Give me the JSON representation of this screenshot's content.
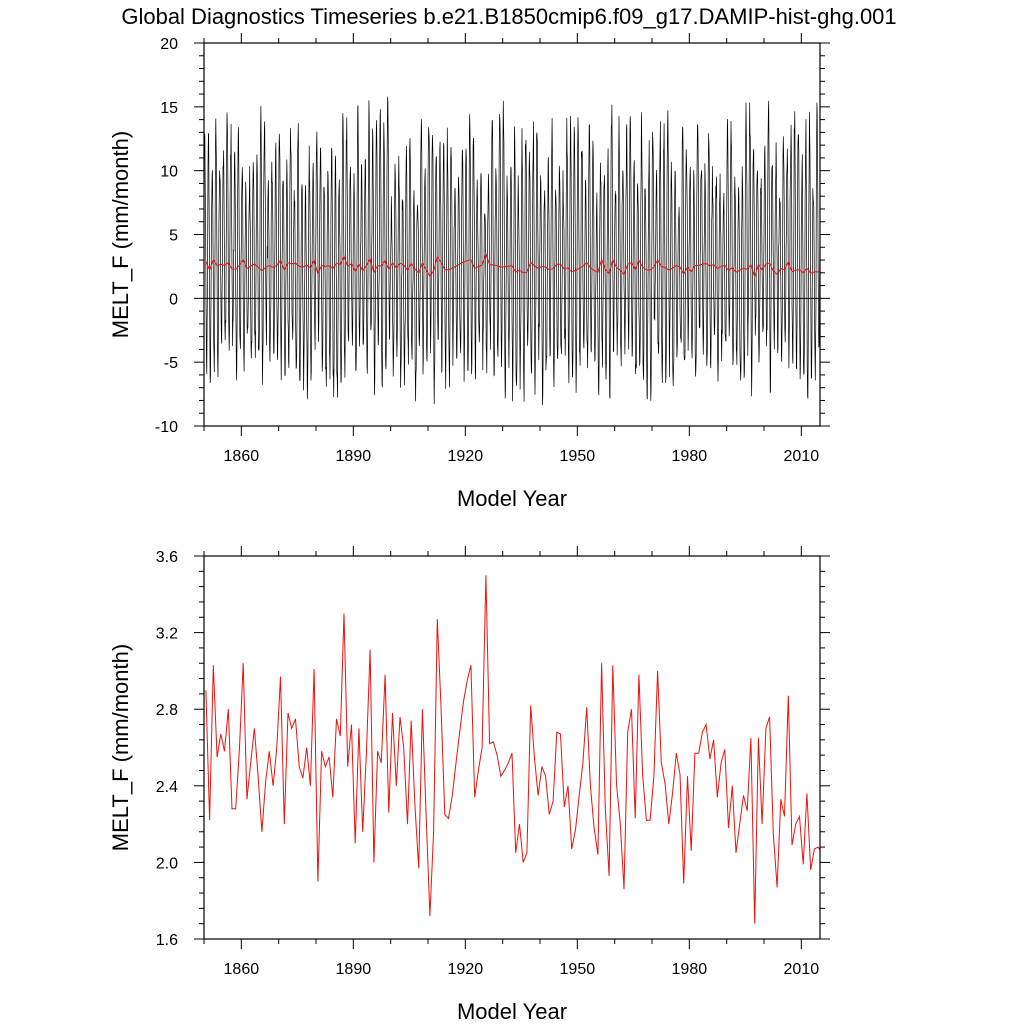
{
  "title": "Global Diagnostics Timeseries b.e21.B1850cmip6.f09_g17.DAMIP-hist-ghg.001",
  "colors": {
    "monthly": "#000000",
    "annual": "#e8140e",
    "background": "#ffffff"
  },
  "chart_data": [
    {
      "type": "line",
      "xlabel": "Model Year",
      "ylabel": "MELT_F (mm/month)",
      "xlim": [
        1850,
        2015
      ],
      "ylim": [
        -10,
        20
      ],
      "xticks": [
        1860,
        1890,
        1920,
        1950,
        1980,
        2010
      ],
      "yticks": [
        -10,
        -5,
        0,
        5,
        10,
        15,
        20
      ],
      "ytick_labels": [
        "-10",
        "-5",
        "0",
        "5",
        "10",
        "15",
        "20"
      ],
      "zero_line": 0,
      "grid": false,
      "series": [
        {
          "resolution": "monthly",
          "mean_annual_cycle_center": 2.5,
          "typical_peak": 11.5,
          "typical_trough": -5.0,
          "max_peak": 18.0,
          "min_trough": -8.5
        },
        {
          "resolution": "annual",
          "values_ref": "annual_mean"
        }
      ]
    },
    {
      "type": "line",
      "xlabel": "Model Year",
      "ylabel": "MELT_F (mm/month)",
      "xlim": [
        1850,
        2015
      ],
      "ylim": [
        1.6,
        3.6
      ],
      "xticks": [
        1860,
        1890,
        1920,
        1950,
        1980,
        2010
      ],
      "yticks": [
        1.6,
        2.0,
        2.4,
        2.8,
        3.2,
        3.6
      ],
      "ytick_labels": [
        "1.6",
        "2.0",
        "2.4",
        "2.8",
        "3.2",
        "3.6"
      ],
      "grid": false,
      "series": [
        {
          "resolution": "annual",
          "values_ref": "annual_mean"
        }
      ]
    }
  ],
  "annual_mean": {
    "x_start": 1850,
    "x_step": 1,
    "values": [
      2.9,
      2.22,
      3.03,
      2.55,
      2.67,
      2.58,
      2.8,
      2.28,
      2.28,
      2.6,
      3.04,
      2.33,
      2.52,
      2.7,
      2.45,
      2.16,
      2.42,
      2.58,
      2.4,
      2.6,
      2.97,
      2.2,
      2.78,
      2.7,
      2.75,
      2.5,
      2.44,
      2.6,
      2.4,
      3.01,
      1.9,
      2.58,
      2.5,
      2.55,
      2.34,
      2.75,
      2.66,
      3.3,
      2.5,
      2.72,
      2.1,
      2.7,
      2.16,
      2.57,
      3.11,
      2.0,
      2.58,
      2.52,
      2.98,
      2.26,
      2.78,
      2.4,
      2.76,
      2.6,
      2.2,
      2.74,
      2.3,
      1.97,
      2.8,
      2.25,
      1.72,
      2.16,
      3.27,
      2.8,
      2.25,
      2.23,
      2.35,
      2.52,
      2.68,
      2.84,
      2.95,
      3.03,
      2.34,
      2.48,
      2.6,
      3.5,
      2.62,
      2.63,
      2.56,
      2.45,
      2.48,
      2.52,
      2.57,
      2.05,
      2.2,
      2.0,
      2.05,
      2.82,
      2.55,
      2.35,
      2.5,
      2.45,
      2.25,
      2.32,
      2.68,
      2.67,
      2.29,
      2.4,
      2.07,
      2.17,
      2.35,
      2.52,
      2.81,
      2.4,
      2.18,
      2.04,
      3.04,
      2.28,
      1.93,
      3.03,
      2.41,
      2.2,
      1.86,
      2.68,
      2.8,
      2.23,
      2.98,
      2.45,
      2.22,
      2.22,
      2.45,
      3.0,
      2.52,
      2.41,
      2.2,
      2.36,
      2.57,
      2.46,
      1.89,
      2.45,
      2.06,
      2.57,
      2.57,
      2.68,
      2.72,
      2.54,
      2.64,
      2.34,
      2.52,
      2.59,
      2.18,
      2.4,
      2.05,
      2.2,
      2.35,
      2.27,
      2.65,
      1.68,
      2.65,
      2.2,
      2.7,
      2.76,
      2.15,
      1.87,
      2.33,
      2.24,
      2.87,
      2.09,
      2.2,
      2.24,
      1.99,
      2.36,
      1.96,
      2.07,
      2.08,
      2.05,
      2.6,
      2.27
    ]
  }
}
